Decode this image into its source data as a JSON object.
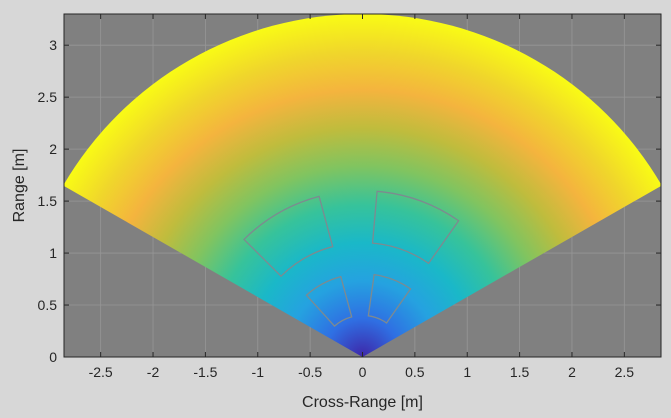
{
  "chart_data": {
    "type": "heatmap",
    "title": "",
    "xlabel": "Cross-Range [m]",
    "ylabel": "Range [m]",
    "xlim": [
      -2.85,
      2.85
    ],
    "ylim": [
      0,
      3.3
    ],
    "x_ticks": [
      -2.5,
      -2,
      -1.5,
      -1,
      -0.5,
      0,
      0.5,
      1,
      1.5,
      2,
      2.5
    ],
    "x_tick_labels": [
      "-2.5",
      "-2",
      "-1.5",
      "-1",
      "-0.5",
      "0",
      "0.5",
      "1",
      "1.5",
      "2",
      "2.5"
    ],
    "y_ticks": [
      0,
      0.5,
      1,
      1.5,
      2,
      2.5,
      3
    ],
    "y_tick_labels": [
      "0",
      "0.5",
      "1",
      "1.5",
      "2",
      "2.5",
      "3"
    ],
    "grid": true,
    "background_color": "#808080",
    "colormap": "parula",
    "colormap_stops": [
      "#3e26a8",
      "#2f6fe3",
      "#25a2e0",
      "#1ab8c8",
      "#37c39a",
      "#80c460",
      "#bfbc3d",
      "#f4b43e",
      "#f0d62b",
      "#f9fb15"
    ],
    "sector": {
      "origin": [
        0,
        0
      ],
      "max_range": 3.3,
      "half_angle_deg": 60
    },
    "color_value": "range",
    "color_range": [
      0,
      3.3
    ],
    "target_regions": [
      {
        "r_inner": 1.1,
        "r_outer": 1.6,
        "az_from_deg": -45,
        "az_to_deg": -15
      },
      {
        "r_inner": 1.1,
        "r_outer": 1.6,
        "az_from_deg": 5,
        "az_to_deg": 35
      },
      {
        "r_inner": 0.4,
        "r_outer": 0.8,
        "az_from_deg": -42,
        "az_to_deg": -15
      },
      {
        "r_inner": 0.4,
        "r_outer": 0.8,
        "az_from_deg": 8,
        "az_to_deg": 35
      }
    ],
    "target_region_color": "#7d8a90"
  }
}
